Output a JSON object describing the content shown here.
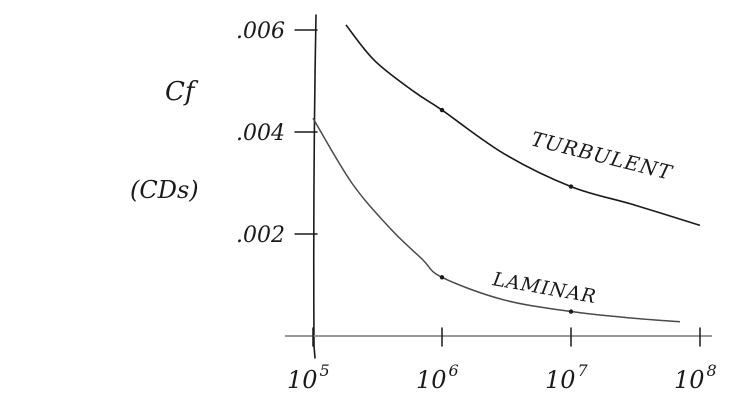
{
  "chart_data": {
    "type": "line",
    "xscale": "log",
    "xlim": [
      100000,
      100000000
    ],
    "ylim": [
      0,
      0.006
    ],
    "xticks": [
      {
        "value": 100000,
        "base": "10",
        "exp": "5"
      },
      {
        "value": 1000000,
        "base": "10",
        "exp": "6"
      },
      {
        "value": 10000000,
        "base": "10",
        "exp": "7"
      },
      {
        "value": 100000000,
        "base": "10",
        "exp": "8"
      }
    ],
    "yticks": [
      {
        "value": 0.002,
        "label": ".002"
      },
      {
        "value": 0.004,
        "label": ".004"
      },
      {
        "value": 0.006,
        "label": ".006"
      }
    ],
    "ylabel": "Cf",
    "ylabel2": "(CDs)",
    "series": [
      {
        "name": "TURBULENT",
        "x": [
          180000,
          300000,
          600000,
          1000000,
          3000000,
          10000000,
          30000000,
          100000000
        ],
        "y": [
          0.0061,
          0.0054,
          0.0048,
          0.00443,
          0.00358,
          0.00293,
          0.00258,
          0.00217
        ]
      },
      {
        "name": "LAMINAR",
        "x": [
          100000,
          200000,
          400000,
          700000,
          1000000,
          3000000,
          10000000,
          30000000,
          70000000
        ],
        "y": [
          0.00427,
          0.003,
          0.0021,
          0.00151,
          0.00115,
          0.00071,
          0.00048,
          0.00035,
          0.00028
        ]
      }
    ],
    "marked_points": {
      "TURBULENT": [
        1000000,
        10000000
      ],
      "LAMINAR": [
        1000000,
        10000000
      ]
    }
  }
}
